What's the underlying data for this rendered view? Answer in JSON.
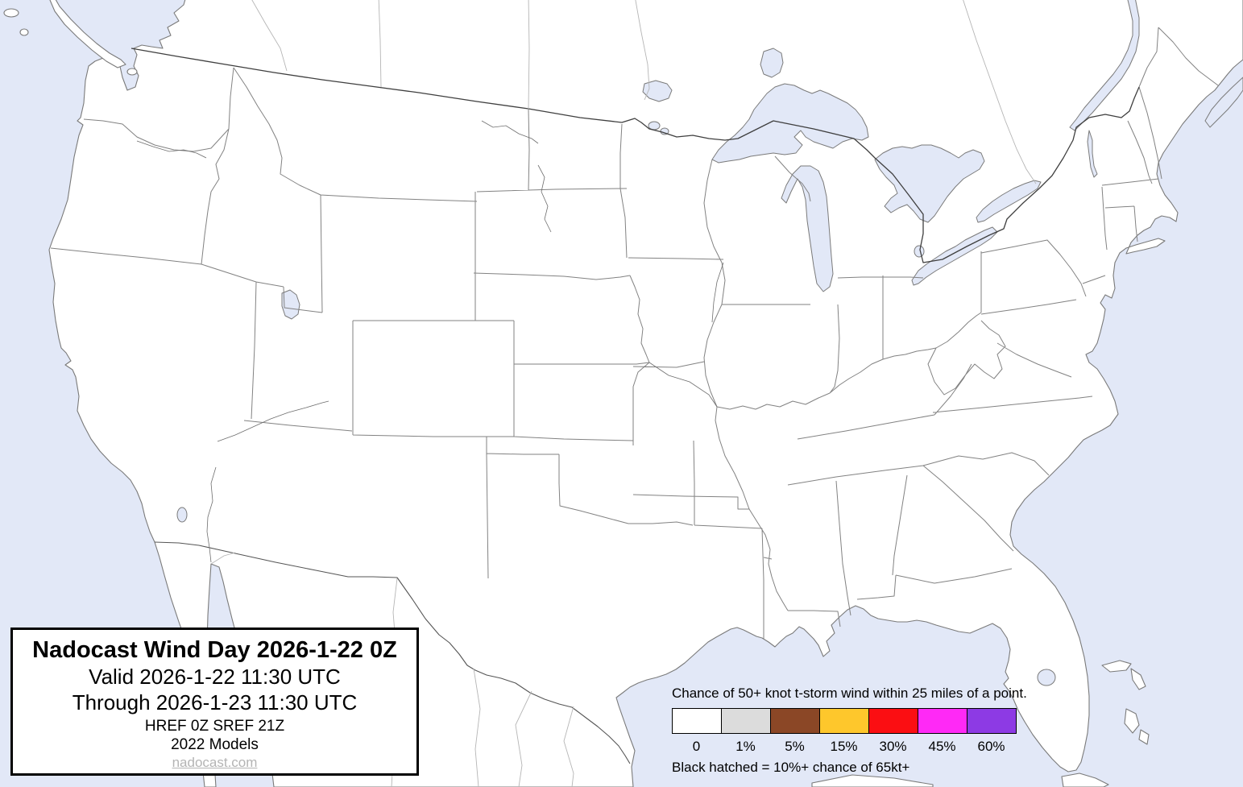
{
  "map": {
    "description": "Blank CONUS forecast map (no probability contours shown), with southern Canada, northern Mexico, Great Lakes and surrounding ocean",
    "colors": {
      "water": "#e2e8f7",
      "land": "#ffffff",
      "coastline": "#7a7a7a",
      "state_border": "#828282",
      "canada_border": "#3f3f3f",
      "mexico_border": "#555555",
      "faint_border": "#b5b5b5",
      "river": "#6e6e6e"
    }
  },
  "title_box": {
    "title": "Nadocast Wind Day 2026-1-22 0Z",
    "valid": "Valid 2026-1-22 11:30 UTC",
    "through": "Through 2026-1-23 11:30 UTC",
    "models_line1": "HREF 0Z SREF 21Z",
    "models_line2": "2022 Models",
    "website": "nadocast.com"
  },
  "legend": {
    "heading": "Chance of 50+ knot t-storm wind within 25 miles of a point.",
    "swatches": [
      {
        "label": "0",
        "color": "#ffffff"
      },
      {
        "label": "1%",
        "color": "#dcdcdc"
      },
      {
        "label": "5%",
        "color": "#8b4726"
      },
      {
        "label": "15%",
        "color": "#fec72c"
      },
      {
        "label": "30%",
        "color": "#fb0e12"
      },
      {
        "label": "45%",
        "color": "#ff29f6"
      },
      {
        "label": "60%",
        "color": "#8d3ae4"
      }
    ],
    "note": "Black hatched = 10%+ chance of 65kt+"
  }
}
